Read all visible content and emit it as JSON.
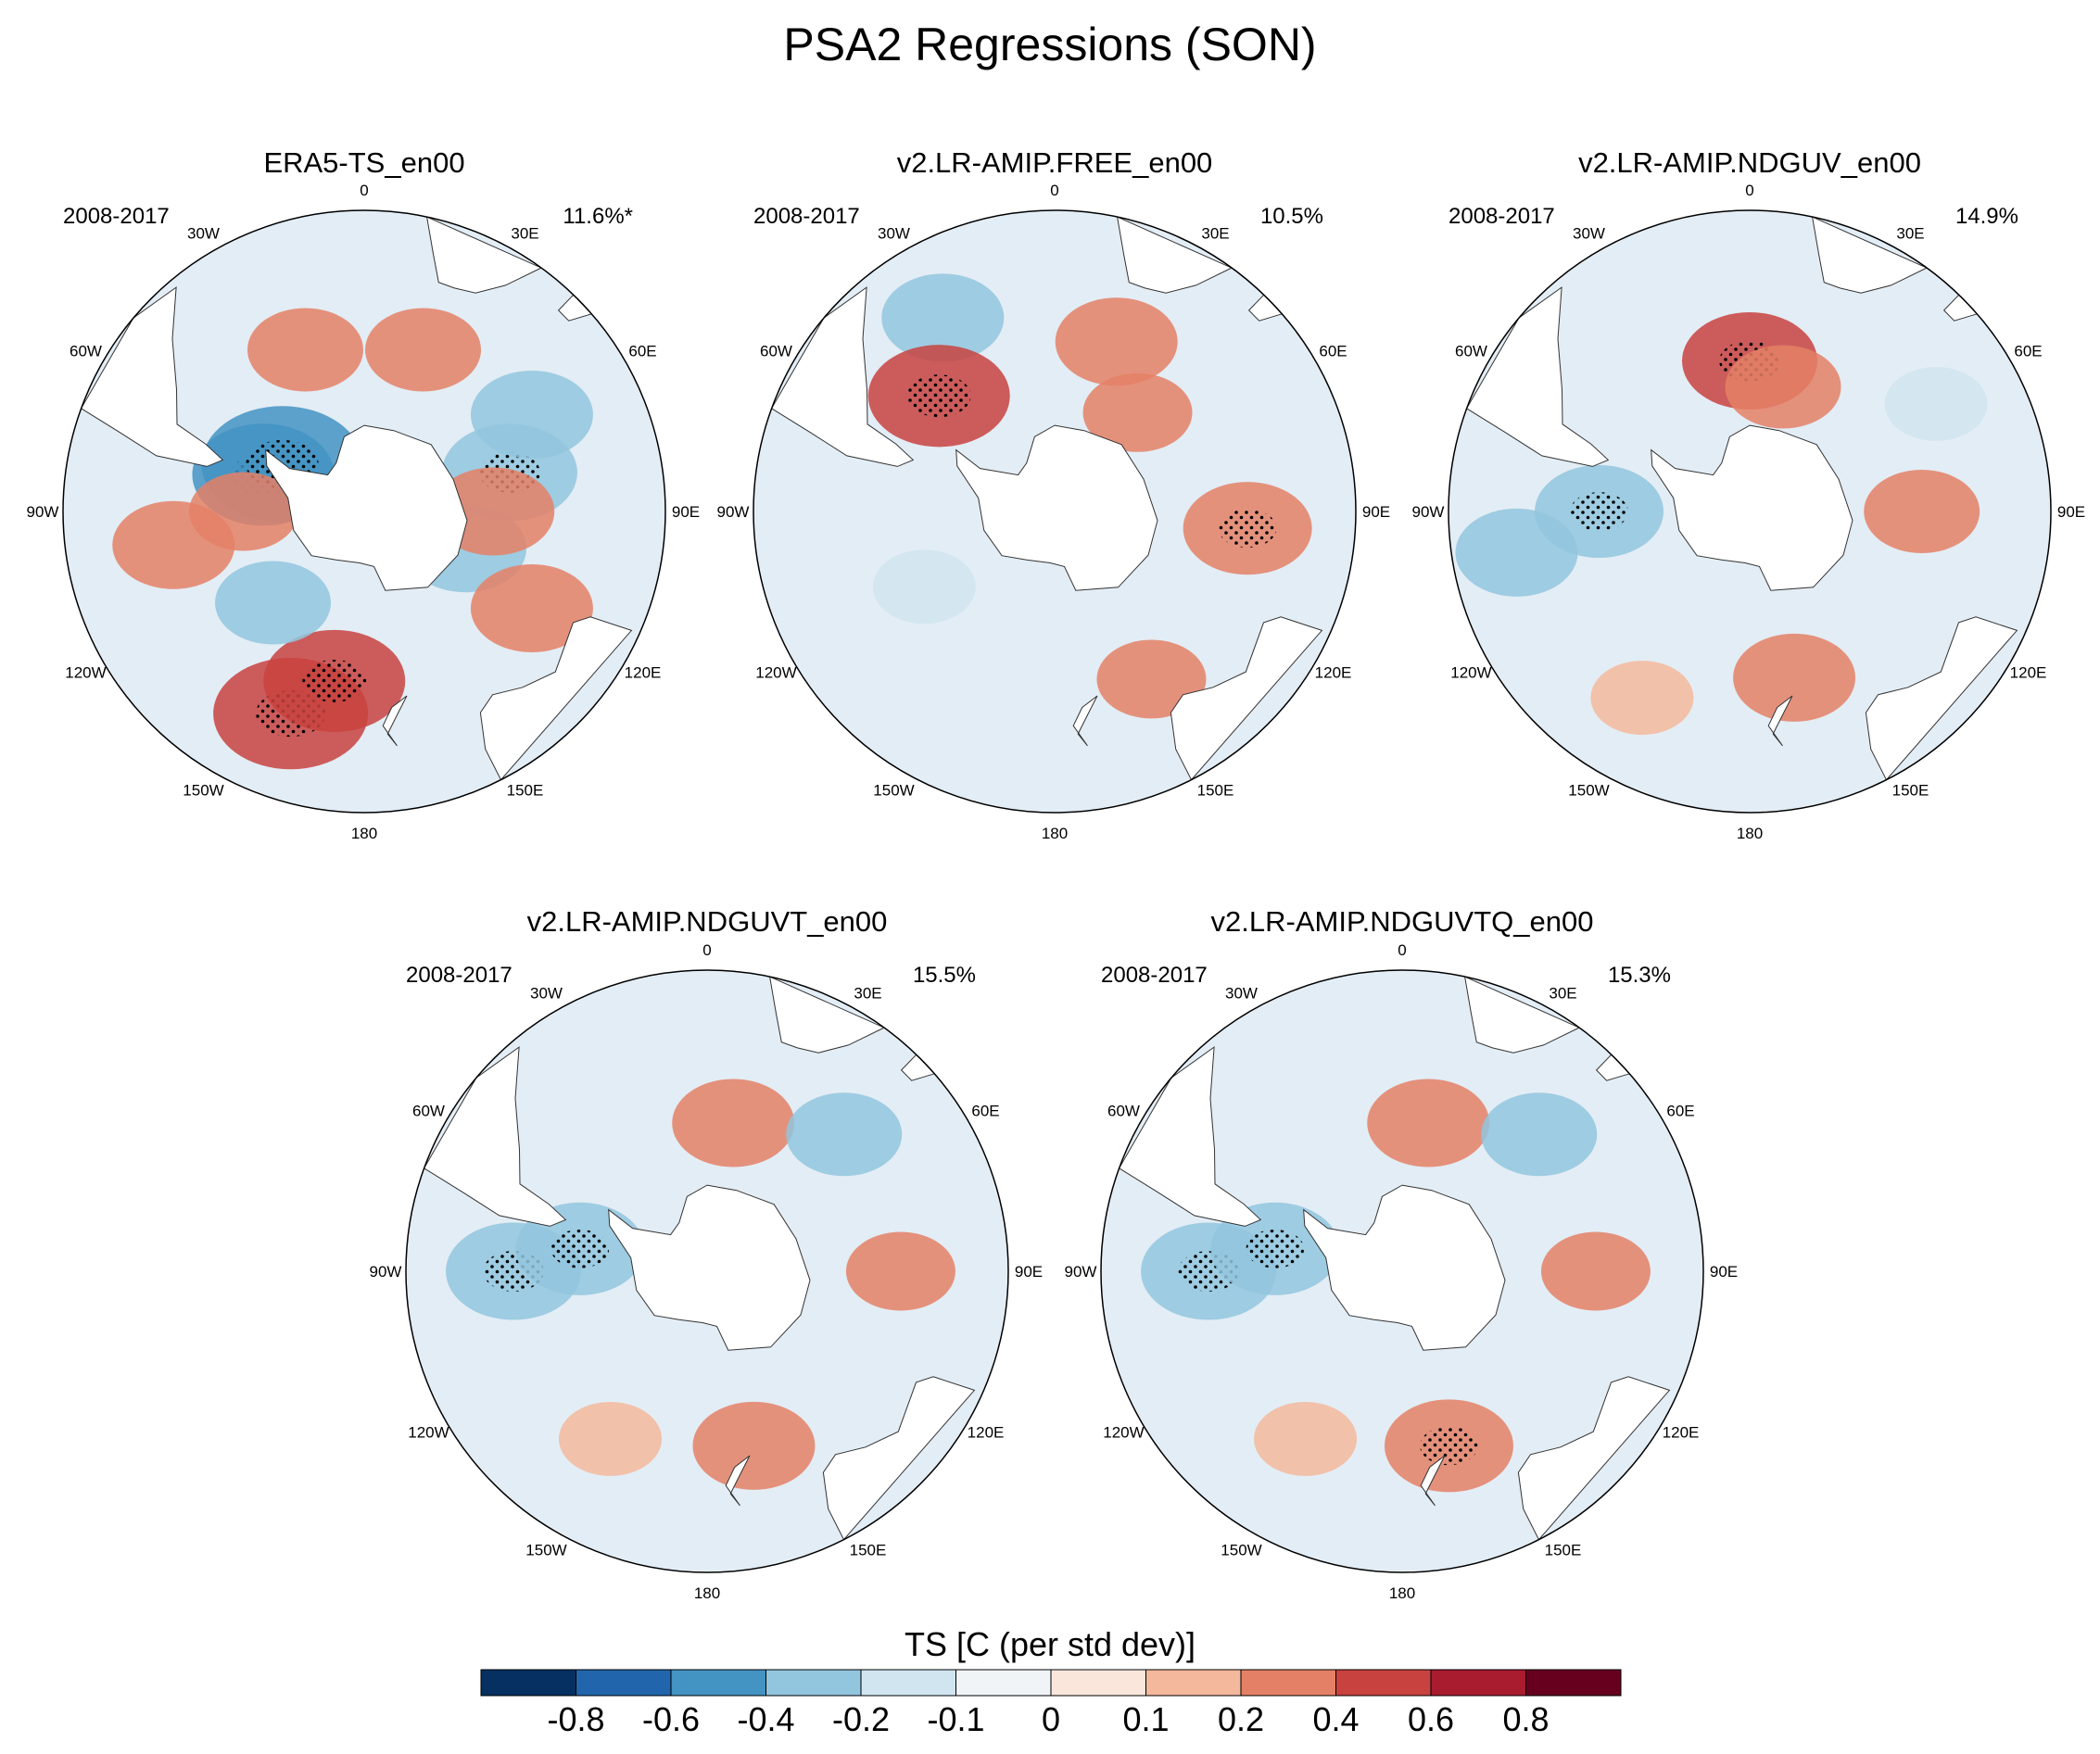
{
  "figure": {
    "title": "PSA2 Regressions (SON)"
  },
  "longitude_labels": [
    "0",
    "30E",
    "60E",
    "90E",
    "120E",
    "150E",
    "180",
    "150W",
    "120W",
    "90W",
    "60W",
    "30W"
  ],
  "panels": [
    {
      "id": "era5",
      "title": "ERA5-TS_en00",
      "period": "2008-2017",
      "variance": "11.6%*",
      "blobs": [
        {
          "lon": -70,
          "lat": -65,
          "v": -0.45
        },
        {
          "lon": -60,
          "lat": -68,
          "v": -0.6
        },
        {
          "lon": -100,
          "lat": -45,
          "v": 0.3
        },
        {
          "lon": -160,
          "lat": -40,
          "v": 0.55
        },
        {
          "lon": -170,
          "lat": -50,
          "v": 0.45
        },
        {
          "lon": -135,
          "lat": -60,
          "v": -0.25
        },
        {
          "lon": 75,
          "lat": -55,
          "v": -0.4
        },
        {
          "lon": 110,
          "lat": -65,
          "v": -0.3
        },
        {
          "lon": 60,
          "lat": -45,
          "v": -0.3
        },
        {
          "lon": 20,
          "lat": -50,
          "v": 0.25
        },
        {
          "lon": -20,
          "lat": -50,
          "v": 0.25
        },
        {
          "lon": 120,
          "lat": -45,
          "v": 0.3
        },
        {
          "lon": 90,
          "lat": -60,
          "v": 0.3
        },
        {
          "lon": -90,
          "lat": -62,
          "v": 0.2
        }
      ]
    },
    {
      "id": "free",
      "title": "v2.LR-AMIP.FREE_en00",
      "period": "2008-2017",
      "variance": "10.5%",
      "blobs": [
        {
          "lon": -30,
          "lat": -38,
          "v": -0.3
        },
        {
          "lon": -45,
          "lat": -52,
          "v": 0.45
        },
        {
          "lon": 20,
          "lat": -48,
          "v": 0.3
        },
        {
          "lon": 95,
          "lat": -45,
          "v": 0.35
        },
        {
          "lon": 150,
          "lat": -45,
          "v": 0.2
        },
        {
          "lon": -120,
          "lat": -55,
          "v": -0.15
        },
        {
          "lon": 40,
          "lat": -60,
          "v": 0.2
        }
      ]
    },
    {
      "id": "ndguv",
      "title": "v2.LR-AMIP.NDGUV_en00",
      "period": "2008-2017",
      "variance": "14.9%",
      "blobs": [
        {
          "lon": -90,
          "lat": -55,
          "v": -0.35
        },
        {
          "lon": -100,
          "lat": -35,
          "v": -0.3
        },
        {
          "lon": 0,
          "lat": -55,
          "v": 0.4
        },
        {
          "lon": 15,
          "lat": -60,
          "v": 0.25
        },
        {
          "lon": 165,
          "lat": -50,
          "v": 0.3
        },
        {
          "lon": 90,
          "lat": -50,
          "v": 0.25
        },
        {
          "lon": -150,
          "lat": -40,
          "v": 0.15
        },
        {
          "lon": 60,
          "lat": -40,
          "v": -0.15
        }
      ]
    },
    {
      "id": "ndguvt",
      "title": "v2.LR-AMIP.NDGUVT_en00",
      "period": "2008-2017",
      "variance": "15.5%",
      "blobs": [
        {
          "lon": -90,
          "lat": -45,
          "v": -0.4
        },
        {
          "lon": -80,
          "lat": -60,
          "v": -0.35
        },
        {
          "lon": 10,
          "lat": -55,
          "v": 0.3
        },
        {
          "lon": 165,
          "lat": -48,
          "v": 0.3
        },
        {
          "lon": 45,
          "lat": -45,
          "v": -0.25
        },
        {
          "lon": 90,
          "lat": -45,
          "v": 0.2
        },
        {
          "lon": -150,
          "lat": -45,
          "v": 0.15
        }
      ]
    },
    {
      "id": "ndguvtq",
      "title": "v2.LR-AMIP.NDGUVTQ_en00",
      "period": "2008-2017",
      "variance": "15.3%",
      "blobs": [
        {
          "lon": -90,
          "lat": -45,
          "v": -0.4
        },
        {
          "lon": -80,
          "lat": -60,
          "v": -0.35
        },
        {
          "lon": 10,
          "lat": -55,
          "v": 0.3
        },
        {
          "lon": 165,
          "lat": -48,
          "v": 0.35
        },
        {
          "lon": 45,
          "lat": -45,
          "v": -0.25
        },
        {
          "lon": 90,
          "lat": -45,
          "v": 0.2
        },
        {
          "lon": -150,
          "lat": -45,
          "v": 0.15
        }
      ]
    }
  ],
  "colorbar": {
    "title": "TS [C (per std dev)]",
    "tick_labels": [
      "-0.8",
      "-0.6",
      "-0.4",
      "-0.2",
      "-0.1",
      "0",
      "0.1",
      "0.2",
      "0.4",
      "0.6",
      "0.8"
    ],
    "colors": [
      "#053061",
      "#2166ac",
      "#4393c3",
      "#92c5de",
      "#d1e5f0",
      "#f1f4f7",
      "#fbe6dc",
      "#f4b89c",
      "#e48066",
      "#c8423f",
      "#a91b2f",
      "#67001f"
    ]
  }
}
